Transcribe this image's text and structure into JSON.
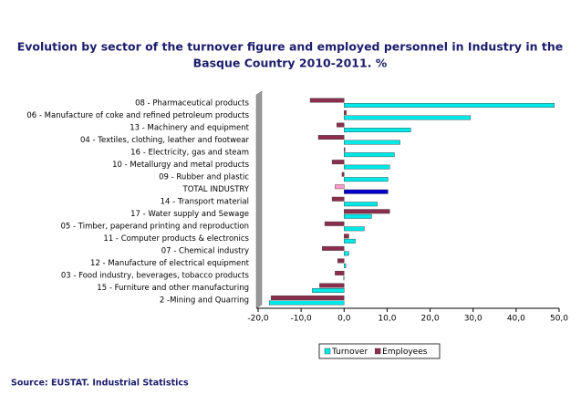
{
  "chart_data": {
    "type": "hbar",
    "title": [
      "Evolution by sector of the turnover figure and employed personnel in Industry in the",
      "Basque Country 2010-2011. %"
    ],
    "categories": [
      "08 - Pharmaceutical products",
      "06 - Manufacture of coke and refined petroleum products",
      "13 - Machinery and equipment",
      "04 - Textiles, clothing, leather and footwear",
      "16 - Electricity, gas and steam",
      "10 - Metallurgy and metal products",
      "09 - Rubber and plastic",
      "TOTAL INDUSTRY",
      "14 - Transport material",
      "17 - Water supply and Sewage",
      "05 - Timber, paperand printing and reproduction",
      "11 - Computer products & electronics",
      "07 - Chemical industry",
      "12 - Manufacture of electrical equipment",
      "03 - Food industry, beverages, tobacco products",
      "15 - Furniture and other manufacturing",
      "2 -Mining and Quarring"
    ],
    "series": [
      {
        "name": "Turnover",
        "color": "#00e8e8",
        "colors": [
          "#00e8e8",
          "#00e8e8",
          "#00e8e8",
          "#00e8e8",
          "#00e8e8",
          "#00e8e8",
          "#00e8e8",
          "#0000cc",
          "#00e8e8",
          "#00e8e8",
          "#00e8e8",
          "#00e8e8",
          "#00e8e8",
          "#00e8e8",
          "#00e8e8",
          "#00e8e8",
          "#00e8e8"
        ],
        "values": [
          48.9,
          29.4,
          15.5,
          13.0,
          11.7,
          10.6,
          10.2,
          10.2,
          7.7,
          6.4,
          4.7,
          2.6,
          1.1,
          0.4,
          -0.1,
          -7.4,
          -17.4
        ]
      },
      {
        "name": "Employees",
        "color": "#8b2e4e",
        "colors": [
          "#8b2e4e",
          "#8b2e4e",
          "#8b2e4e",
          "#8b2e4e",
          "#8b2e4e",
          "#8b2e4e",
          "#8b2e4e",
          "#ff99cc",
          "#8b2e4e",
          "#8b2e4e",
          "#8b2e4e",
          "#8b2e4e",
          "#8b2e4e",
          "#8b2e4e",
          "#8b2e4e",
          "#8b2e4e",
          "#8b2e4e"
        ],
        "values": [
          -7.9,
          0.5,
          -1.7,
          -6.0,
          0.2,
          -2.8,
          -0.5,
          -2.1,
          -2.8,
          10.6,
          -4.5,
          1.1,
          -5.1,
          -1.5,
          -2.1,
          -5.7,
          -17.0
        ]
      }
    ],
    "xlim": [
      -20,
      50
    ],
    "xticks": [
      {
        "value": -20,
        "label": "-20,0"
      },
      {
        "value": -10,
        "label": "-10,0"
      },
      {
        "value": 0,
        "label": "0,0"
      },
      {
        "value": 10,
        "label": "10,0"
      },
      {
        "value": 20,
        "label": "20,0"
      },
      {
        "value": 30,
        "label": "30,0"
      },
      {
        "value": 40,
        "label": "40,0"
      },
      {
        "value": 50,
        "label": "50,0"
      }
    ],
    "legend": "bottom",
    "source": "Source: EUSTAT. Industrial Statistics"
  }
}
